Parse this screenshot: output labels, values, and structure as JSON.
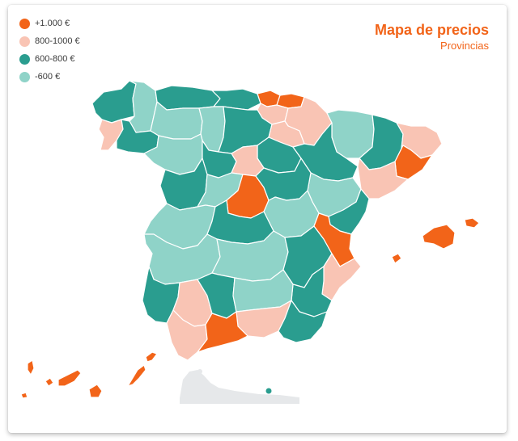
{
  "title": "Mapa de precios",
  "subtitle": "Provincias",
  "legend": [
    {
      "label": "+1.000 €",
      "color": "#f26419"
    },
    {
      "label": "800-1000  €",
      "color": "#f9c4b4"
    },
    {
      "label": "600-800  €",
      "color": "#2a9d8f"
    },
    {
      "label": "-600  €",
      "color": "#8fd3c8"
    }
  ],
  "colors": {
    "high": "#f26419",
    "mid_high": "#f9c4b4",
    "mid": "#2a9d8f",
    "low": "#8fd3c8",
    "africa": "#e6e8ea"
  }
}
